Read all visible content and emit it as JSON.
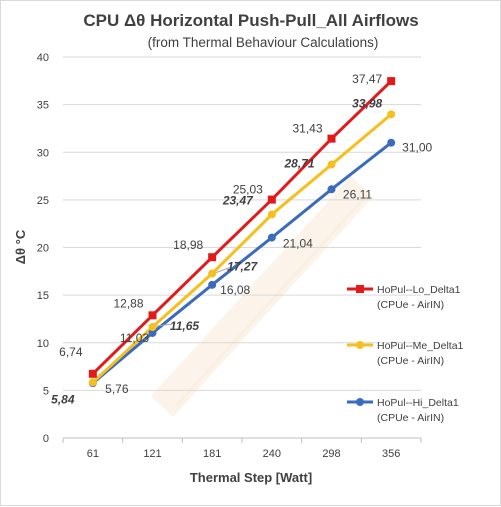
{
  "chart_data": {
    "type": "line",
    "title_main": "CPU   Δθ    Horizontal  Push-Pull_All Airflows",
    "title_sub": "(from Thermal Behaviour Calculations)",
    "xlabel": "Thermal Step [Watt]",
    "ylabel": "Δθ °C",
    "categories": [
      "61",
      "121",
      "181",
      "240",
      "298",
      "356"
    ],
    "ylim": [
      0,
      40
    ],
    "yticks": [
      0,
      5,
      10,
      15,
      20,
      25,
      30,
      35,
      40
    ],
    "grid": true,
    "legend_position": "right",
    "series": [
      {
        "name": "HoPul--Lo_Delta1",
        "name_sub": "(CPUe - AirIN)",
        "color": "#e31a1c",
        "marker": "square",
        "values": [
          6.74,
          12.88,
          18.98,
          25.03,
          31.43,
          37.47
        ],
        "labels": [
          "6,74",
          "12,88",
          "18,98",
          "25,03",
          "31,43",
          "37,47"
        ],
        "label_style": "normal"
      },
      {
        "name": "HoPul--Me_Delta1",
        "name_sub": "(CPUe - AirIN)",
        "color": "#f5bf1e",
        "marker": "circle",
        "values": [
          5.84,
          11.65,
          17.27,
          23.47,
          28.71,
          33.98
        ],
        "labels": [
          "5,84",
          "11,65",
          "17,27",
          "23,47",
          "28,71",
          "33,98"
        ],
        "label_style": "bold"
      },
      {
        "name": "HoPul--Hi_Delta1",
        "name_sub": "(CPUe - AirIN)",
        "color": "#3a6bbd",
        "marker": "circle",
        "values": [
          5.76,
          11.03,
          16.08,
          21.04,
          26.11,
          31.0
        ],
        "labels": [
          "5,76",
          "11,03",
          "16,08",
          "21,04",
          "26,11",
          "31,00"
        ],
        "label_style": "normal"
      }
    ]
  }
}
